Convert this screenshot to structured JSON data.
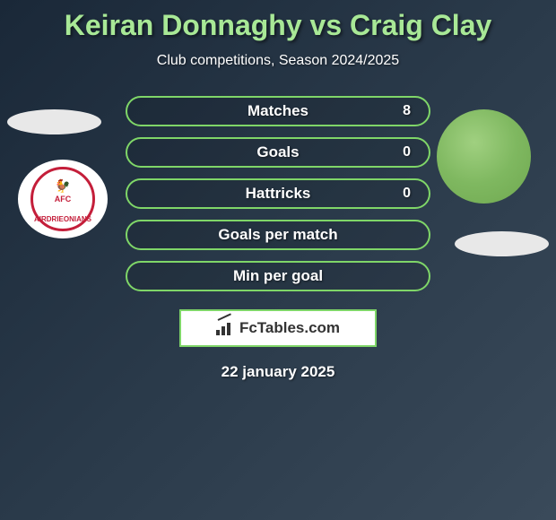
{
  "header": {
    "title": "Keiran Donnaghy vs Craig Clay",
    "subtitle": "Club competitions, Season 2024/2025"
  },
  "stats": [
    {
      "label": "Matches",
      "value_right": "8"
    },
    {
      "label": "Goals",
      "value_right": "0"
    },
    {
      "label": "Hattricks",
      "value_right": "0"
    },
    {
      "label": "Goals per match",
      "value_right": ""
    },
    {
      "label": "Min per goal",
      "value_right": ""
    }
  ],
  "badge_left": {
    "text_top": "AFC",
    "text_bottom": "AIRDRIEONIANS"
  },
  "footer": {
    "brand": "FcTables.com",
    "date": "22 january 2025"
  },
  "colors": {
    "accent_green": "#7fd668",
    "title_green": "#a8e896",
    "badge_red": "#c41e3a",
    "text_white": "#ffffff",
    "box_white": "#ffffff"
  }
}
